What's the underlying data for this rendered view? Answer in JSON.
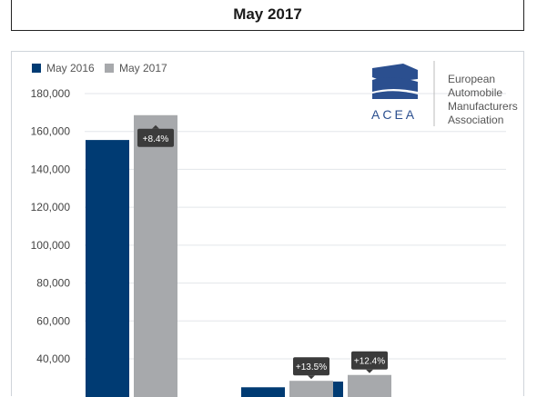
{
  "header": {
    "title": "May 2017"
  },
  "logo": {
    "acronym": "ACEA",
    "lines": [
      "European",
      "Automobile",
      "Manufacturers",
      "Association"
    ]
  },
  "colors": {
    "may2016": "#003b73",
    "may2017": "#a7a9ac",
    "label_bg": "#3b3b3b",
    "grid": "#e3e6ea"
  },
  "chart_data": {
    "type": "bar",
    "categories": [
      "",
      "",
      ""
    ],
    "series": [
      {
        "name": "May 2016",
        "values": [
          155500,
          25000,
          28000
        ]
      },
      {
        "name": "May 2017",
        "values": [
          168600,
          28400,
          31500
        ]
      }
    ],
    "data_labels": [
      "+8.4%",
      "+13.5%",
      "+12.4%"
    ],
    "yticks": [
      40000,
      60000,
      80000,
      100000,
      120000,
      140000,
      160000,
      180000
    ],
    "ytick_labels": [
      "40,000",
      "60,000",
      "80,000",
      "100,000",
      "120,000",
      "140,000",
      "160,000",
      "180,000"
    ],
    "ylim": [
      0,
      180000
    ],
    "grid": true,
    "legend": "top-left"
  }
}
